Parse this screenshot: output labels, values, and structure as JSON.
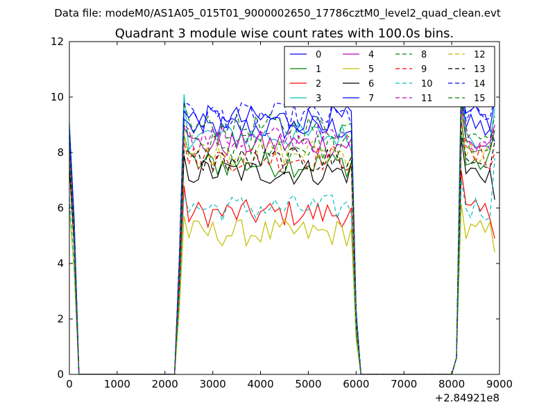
{
  "chart_data": {
    "type": "line",
    "suptitle": "Data file: modeM0/AS1A05_015T01_9000002650_17786cztM0_level2_quad_clean.evt",
    "title": "Quadrant 3 module wise count rates with 100.0s bins.",
    "xlabel": "",
    "ylabel": "",
    "x_offset_label": "+2.84921e8",
    "xlim": [
      0,
      9000
    ],
    "ylim": [
      0,
      12
    ],
    "xticks": [
      0,
      1000,
      2000,
      3000,
      4000,
      5000,
      6000,
      7000,
      8000,
      9000
    ],
    "yticks": [
      0,
      2,
      4,
      6,
      8,
      10,
      12
    ],
    "legend_position": "top-right",
    "grid": false,
    "segments": [
      {
        "x_start": 0,
        "x_end": 100,
        "zero_after": 200
      },
      {
        "x_start": 2300,
        "x_end": 5900,
        "zero_before": 2200,
        "zero_after": 6100
      },
      {
        "x_start": 8200,
        "x_end": 8900,
        "zero_before": 8000
      }
    ],
    "series": [
      {
        "name": "0",
        "color": "#0000ff",
        "dash": false,
        "level": 8.9,
        "peak": 9.2,
        "edge_left": 9.0,
        "end_value": 8.4
      },
      {
        "name": "1",
        "color": "#008000",
        "dash": false,
        "level": 7.6,
        "peak": 8.6,
        "edge_left": 8.5,
        "end_value": 8.8
      },
      {
        "name": "2",
        "color": "#ff0000",
        "dash": false,
        "level": 5.8,
        "peak": 6.8,
        "edge_left": 7.5,
        "end_value": 4.9
      },
      {
        "name": "3",
        "color": "#00bfbf",
        "dash": false,
        "level": 8.6,
        "peak": 10.1,
        "edge_left": 9.1,
        "end_value": 9.6
      },
      {
        "name": "4",
        "color": "#bf00bf",
        "dash": false,
        "level": 8.3,
        "peak": 8.9,
        "edge_left": 8.3,
        "end_value": 9.0
      },
      {
        "name": "5",
        "color": "#bfbf00",
        "dash": false,
        "level": 5.1,
        "peak": 5.7,
        "edge_left": 6.0,
        "end_value": 4.4
      },
      {
        "name": "6",
        "color": "#000000",
        "dash": false,
        "level": 7.3,
        "peak": 7.9,
        "edge_left": 7.5,
        "end_value": 6.3
      },
      {
        "name": "7",
        "color": "#0000ff",
        "dash": false,
        "level": 9.2,
        "peak": 9.5,
        "edge_left": 8.8,
        "end_value": 9.9
      },
      {
        "name": "8",
        "color": "#008000",
        "dash": true,
        "level": 8.9,
        "peak": 9.8,
        "edge_left": 8.7,
        "end_value": 9.3
      },
      {
        "name": "9",
        "color": "#ff0000",
        "dash": true,
        "level": 7.8,
        "peak": 8.4,
        "edge_left": 7.8,
        "end_value": 8.0
      },
      {
        "name": "10",
        "color": "#00bfbf",
        "dash": true,
        "level": 6.0,
        "peak": 6.5,
        "edge_left": 6.4,
        "end_value": 7.8
      },
      {
        "name": "11",
        "color": "#bf00bf",
        "dash": true,
        "level": 8.5,
        "peak": 9.0,
        "edge_left": 8.2,
        "end_value": 9.0
      },
      {
        "name": "12",
        "color": "#bfbf00",
        "dash": true,
        "level": 8.0,
        "peak": 8.7,
        "edge_left": 7.9,
        "end_value": 8.1
      },
      {
        "name": "13",
        "color": "#000000",
        "dash": true,
        "level": 7.7,
        "peak": 8.1,
        "edge_left": 7.6,
        "end_value": 8.4
      },
      {
        "name": "14",
        "color": "#0000ff",
        "dash": true,
        "level": 9.3,
        "peak": 9.8,
        "edge_left": 8.9,
        "end_value": 10.0
      },
      {
        "name": "15",
        "color": "#008000",
        "dash": true,
        "level": 8.2,
        "peak": 9.0,
        "edge_left": 8.1,
        "end_value": 8.6
      }
    ]
  }
}
